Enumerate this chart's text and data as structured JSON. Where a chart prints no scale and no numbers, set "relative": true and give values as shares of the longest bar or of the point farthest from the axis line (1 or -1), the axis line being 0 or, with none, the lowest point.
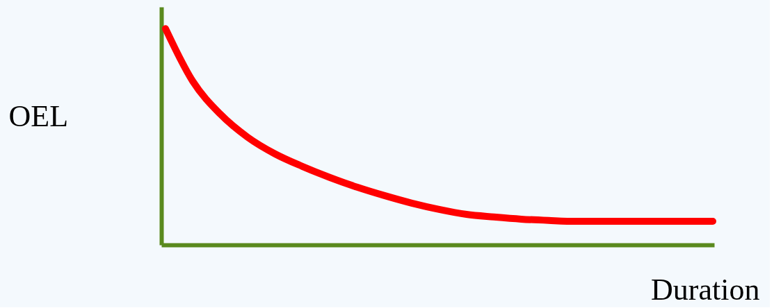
{
  "chart_data": {
    "type": "line",
    "relative": true,
    "xlabel": "Duration",
    "ylabel": "OEL",
    "categories": [
      null,
      null,
      null,
      null,
      null,
      null,
      null,
      null,
      null,
      null,
      null,
      null,
      null,
      null,
      null,
      null,
      null,
      null,
      null,
      null,
      null
    ],
    "series": [
      {
        "color": "#ff0000",
        "values": [
          1.0,
          0.756,
          0.605,
          0.498,
          0.421,
          0.363,
          0.312,
          0.267,
          0.228,
          0.193,
          0.164,
          0.141,
          0.129,
          0.119,
          0.113,
          0.109,
          0.109,
          0.109,
          0.109,
          0.109,
          0.109
        ]
      }
    ],
    "grid": false,
    "line_style": "solid"
  }
}
